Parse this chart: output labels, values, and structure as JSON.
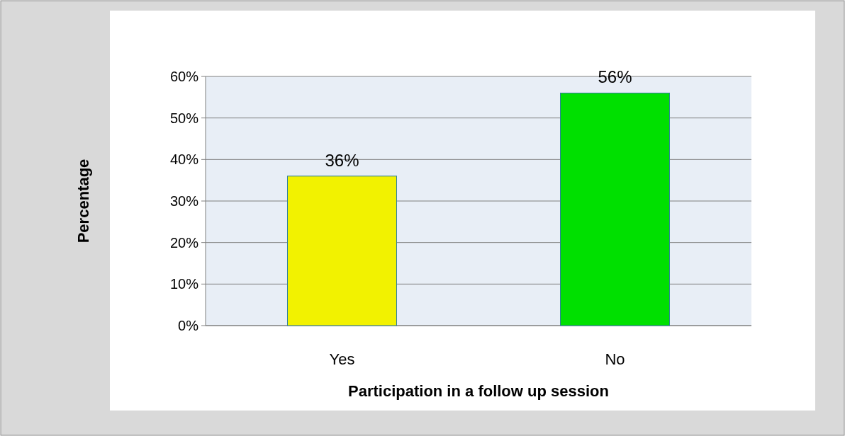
{
  "chart_data": {
    "type": "bar",
    "xlabel": "Participation in a follow up session",
    "ylabel": "Percentage",
    "categories": [
      "Yes",
      "No"
    ],
    "values": [
      36,
      56
    ],
    "colors": [
      "#f2f200",
      "#00e000"
    ],
    "value_labels": [
      "36%",
      "56%"
    ],
    "ylim": [
      0,
      60
    ],
    "yticks": [
      {
        "value": 0,
        "label": "0%"
      },
      {
        "value": 10,
        "label": "10%"
      },
      {
        "value": 20,
        "label": "20%"
      },
      {
        "value": 30,
        "label": "30%"
      },
      {
        "value": 40,
        "label": "40%"
      },
      {
        "value": 50,
        "label": "50%"
      },
      {
        "value": 60,
        "label": "60%"
      }
    ],
    "grid": "y"
  }
}
